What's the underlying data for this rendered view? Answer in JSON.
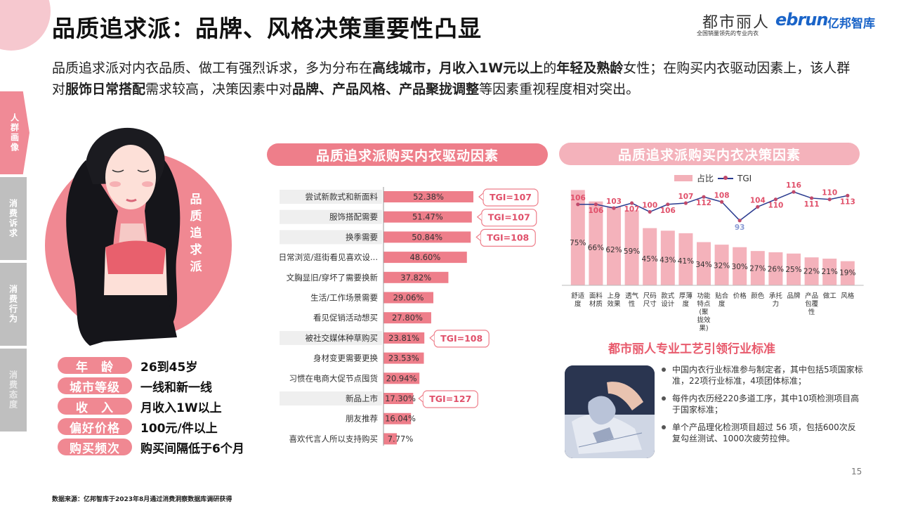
{
  "header": {
    "title": "品质追求派：品牌、风格决策重要性凸显",
    "brand_cosmo": "都市丽人",
    "brand_cosmo_tagline": "全国销量领先的专业内衣",
    "brand_ebrun": "ebrun",
    "brand_yibang": "亿邦智库"
  },
  "intro": {
    "p1": "品质追求派对内衣品质、做工有强烈诉求，多为分布在",
    "b1": "高线城市，月收入1W元以上",
    "p2": "的",
    "b2": "年轻及熟龄",
    "p3": "女性；在购买内衣驱动因素上，该人群对",
    "b3": "服饰日常搭配",
    "p4": "需求较高，决策因素中对",
    "b4": "品牌、产品风格、产品聚拢调整",
    "p5": "等因素重视程度相对突出。"
  },
  "side_nav": [
    {
      "label": "人群画像"
    },
    {
      "label": "消费诉求"
    },
    {
      "label": "消费行为"
    },
    {
      "label": "消费态度"
    }
  ],
  "persona": {
    "label": "品质追求派",
    "rows": [
      {
        "key": "年　龄",
        "value": "26到45岁"
      },
      {
        "key": "城市等级",
        "value": "一线和新一线"
      },
      {
        "key": "收　入",
        "value": "月收入1W以上"
      },
      {
        "key": "偏好价格",
        "value": "100元/件以上"
      },
      {
        "key": "购买频次",
        "value": "购买间隔低于6个月"
      }
    ]
  },
  "colors": {
    "pink": "#f08892",
    "pink_bar": "#ee7e8a",
    "light_pink": "#f4b2bb",
    "tgi_line": "#2a3b8f",
    "tgi_point": "#c14a6b",
    "tgi_label": "#e0506a"
  },
  "chart_data": [
    {
      "type": "bar",
      "orientation": "horizontal",
      "title": "品质追求派购买内衣驱动因素",
      "categories": [
        "尝试新款式和新面料",
        "服饰搭配需要",
        "换季需要",
        "日常浏览/逛街看见喜欢设...",
        "文胸显旧/穿坏了需要换新",
        "生活/工作场景需要",
        "看见促销活动想买",
        "被社交媒体种草购买",
        "身材变更需要更换",
        "习惯在电商大促节点囤货",
        "新品上市",
        "朋友推荐",
        "喜欢代言人所以支持购买"
      ],
      "values": [
        52.38,
        51.47,
        50.84,
        48.6,
        37.82,
        29.06,
        27.8,
        23.81,
        23.53,
        20.94,
        17.3,
        16.04,
        7.77
      ],
      "value_labels": [
        "52.38%",
        "51.47%",
        "50.84%",
        "48.60%",
        "37.82%",
        "29.06%",
        "27.80%",
        "23.81%",
        "23.53%",
        "20.94%",
        "17.30%",
        "16.04%",
        "7.77%"
      ],
      "xlim": [
        0,
        60
      ],
      "tgi_callouts": [
        {
          "category": "尝试新款式和新面料",
          "label": "TGI=107"
        },
        {
          "category": "服饰搭配需要",
          "label": "TGI=107"
        },
        {
          "category": "换季需要",
          "label": "TGI=108"
        },
        {
          "category": "被社交媒体种草购买",
          "label": "TGI=108"
        },
        {
          "category": "新品上市",
          "label": "TGI=127"
        }
      ]
    },
    {
      "type": "bar",
      "title": "品质追求派购买内衣决策因素",
      "legend": [
        "占比",
        "TGI"
      ],
      "legend_position": "top",
      "categories": [
        "舒适度",
        "面料材质",
        "上身效果",
        "透气性",
        "尺码尺寸",
        "款式设计",
        "厚薄度",
        "功能特点(聚拢效果)",
        "贴合度",
        "价格",
        "颜色",
        "承托力",
        "品牌",
        "产品包覆性",
        "做工",
        "风格"
      ],
      "tick_labels": [
        "舒适\n度",
        "面料\n材质",
        "上身\n效果",
        "透气\n性",
        "尺码\n尺寸",
        "款式\n设计",
        "厚薄\n度",
        "功能\n特点\n(聚\n拢效\n果)",
        "贴合\n度",
        "价格",
        "颜色",
        "承托\n力",
        "品牌",
        "产品\n包覆\n性",
        "做工",
        "风格"
      ],
      "series": [
        {
          "name": "占比",
          "values": [
            75,
            66,
            62,
            59,
            45,
            43,
            41,
            34,
            32,
            30,
            27,
            26,
            25,
            22,
            21,
            19
          ],
          "value_labels": [
            "75%",
            "66%",
            "62%",
            "59%",
            "45%",
            "43%",
            "41%",
            "34%",
            "32%",
            "30%",
            "27%",
            "26%",
            "25%",
            "22%",
            "21%",
            "19%"
          ]
        },
        {
          "name": "TGI",
          "line": true,
          "values": [
            106,
            106,
            103,
            107,
            100,
            106,
            107,
            112,
            108,
            93,
            104,
            110,
            116,
            111,
            110,
            113
          ],
          "value_labels": [
            "106",
            "106",
            "103",
            "107",
            "100",
            "106",
            "107",
            "112",
            "108",
            "93",
            "104",
            "110",
            "116",
            "111",
            "110",
            "113"
          ]
        }
      ],
      "ylim": [
        0,
        80
      ],
      "tgi_ylim": [
        85,
        120
      ]
    }
  ],
  "craft": {
    "title": "都市丽人专业工艺引领行业标准",
    "items": [
      "中国内衣行业标准参与制定者，其中包括5项国家标准，22项行业标准，4项团体标准；",
      "每件内衣历经220多道工序，其中10项检测项目高于国家标准；",
      "单个产品理化检测项目超过 56 项，包括600次反复勾丝测试、1000次疲劳拉伸。"
    ]
  },
  "page_number": "15",
  "footnote": "数据来源：亿邦智库于2023年8月通过消费洞察数据库调研获得"
}
